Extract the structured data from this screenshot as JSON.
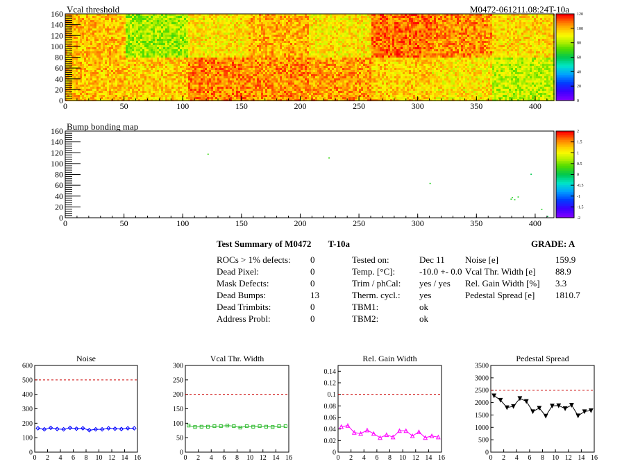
{
  "header": {
    "module_id": "M0472-061211.08:24T-10a"
  },
  "summary": {
    "title": "Test Summary of M0472",
    "test_label": "T-10a",
    "grade_label": "GRADE:",
    "grade_value": "A",
    "defects": [
      {
        "label": "ROCs > 1% defects:",
        "value": "0"
      },
      {
        "label": "Dead Pixel:",
        "value": "0"
      },
      {
        "label": "Mask Defects:",
        "value": "0"
      },
      {
        "label": "Dead Bumps:",
        "value": "13"
      },
      {
        "label": "Dead Trimbits:",
        "value": "0"
      },
      {
        "label": "Address Probl:",
        "value": "0"
      }
    ],
    "conditions": [
      {
        "label": "Tested on:",
        "value": "Dec 11"
      },
      {
        "label": "Temp. [°C]:",
        "value": "-10.0 +- 0.0"
      },
      {
        "label": "Trim / phCal:",
        "value": "yes / yes"
      },
      {
        "label": "Therm. cycl.:",
        "value": "yes"
      },
      {
        "label": "TBM1:",
        "value": "ok"
      },
      {
        "label": "TBM2:",
        "value": "ok"
      }
    ],
    "metrics": [
      {
        "label": "Noise [e]",
        "value": "159.9"
      },
      {
        "label": "Vcal Thr. Width [e]",
        "value": "88.9"
      },
      {
        "label": "Rel. Gain Width [%]",
        "value": "3.3"
      },
      {
        "label": "Pedestal Spread [e]",
        "value": "1810.7"
      }
    ]
  },
  "chart_data": [
    {
      "type": "heatmap",
      "title": "Vcal threshold",
      "xlim": [
        0,
        416
      ],
      "ylim": [
        0,
        160
      ],
      "xticks": [
        0,
        50,
        100,
        150,
        200,
        250,
        300,
        350,
        400
      ],
      "yticks": [
        0,
        20,
        40,
        60,
        80,
        100,
        120,
        140,
        160
      ],
      "zlim": [
        0,
        120
      ],
      "zticks": [
        0,
        20,
        40,
        60,
        80,
        100,
        120
      ],
      "roc_means_top": [
        100,
        80,
        94,
        102,
        94,
        110,
        106,
        96
      ],
      "roc_means_bottom": [
        100,
        98,
        107,
        106,
        104,
        98,
        94,
        84
      ]
    },
    {
      "type": "heatmap",
      "title": "Bump bonding map",
      "xlim": [
        0,
        416
      ],
      "ylim": [
        0,
        160
      ],
      "xticks": [
        0,
        50,
        100,
        150,
        200,
        250,
        300,
        350,
        400
      ],
      "yticks": [
        0,
        20,
        40,
        60,
        80,
        100,
        120,
        140,
        160
      ],
      "zlim": [
        -2,
        2
      ],
      "zticks": [
        2,
        1.5,
        1,
        0.5,
        0,
        -0.5,
        -1,
        -1.5,
        -2
      ],
      "points": [
        {
          "x": 121,
          "y": 117,
          "z": 0.3
        },
        {
          "x": 224,
          "y": 110,
          "z": 0.3
        },
        {
          "x": 310,
          "y": 63,
          "z": 0.2
        },
        {
          "x": 396,
          "y": 80,
          "z": 0.0
        },
        {
          "x": 379,
          "y": 34,
          "z": 0.2
        },
        {
          "x": 380,
          "y": 37,
          "z": 0.2
        },
        {
          "x": 382,
          "y": 33,
          "z": 0.2
        },
        {
          "x": 385,
          "y": 38,
          "z": 0.2
        },
        {
          "x": 405,
          "y": 15,
          "z": 0.2
        },
        {
          "x": 410,
          "y": 2,
          "z": 0.0
        }
      ]
    },
    {
      "type": "line",
      "title": "Noise",
      "xlim": [
        0,
        16
      ],
      "ylim": [
        0,
        600
      ],
      "xticks": [
        0,
        2,
        4,
        6,
        8,
        10,
        12,
        14,
        16
      ],
      "yticks": [
        0,
        100,
        200,
        300,
        400,
        500,
        600
      ],
      "cut": 500,
      "color": "#0000ff",
      "marker": "diamond",
      "x": [
        0,
        1,
        2,
        3,
        4,
        5,
        6,
        7,
        8,
        9,
        10,
        11,
        12,
        13,
        14,
        15
      ],
      "values": [
        165,
        158,
        168,
        160,
        158,
        168,
        162,
        165,
        152,
        158,
        158,
        165,
        162,
        160,
        165,
        165
      ]
    },
    {
      "type": "line",
      "title": "Vcal Thr. Width",
      "xlim": [
        0,
        16
      ],
      "ylim": [
        0,
        300
      ],
      "xticks": [
        0,
        2,
        4,
        6,
        8,
        10,
        12,
        14,
        16
      ],
      "yticks": [
        0,
        50,
        100,
        150,
        200,
        250,
        300
      ],
      "cut": 200,
      "color": "#33bb33",
      "marker": "square",
      "x": [
        0,
        1,
        2,
        3,
        4,
        5,
        6,
        7,
        8,
        9,
        10,
        11,
        12,
        13,
        14,
        15
      ],
      "values": [
        92,
        87,
        88,
        88,
        90,
        90,
        92,
        90,
        85,
        90,
        88,
        90,
        88,
        87,
        90,
        90
      ]
    },
    {
      "type": "line",
      "title": "Rel. Gain Width",
      "xlim": [
        0,
        16
      ],
      "ylim": [
        0,
        0.15
      ],
      "xticks": [
        0,
        2,
        4,
        6,
        8,
        10,
        12,
        14,
        16
      ],
      "yticks": [
        0,
        0.02,
        0.04,
        0.06,
        0.08,
        0.1,
        0.12,
        0.14
      ],
      "cut": 0.1,
      "color": "#ff00ff",
      "marker": "triangle",
      "x": [
        0,
        1,
        2,
        3,
        4,
        5,
        6,
        7,
        8,
        9,
        10,
        11,
        12,
        13,
        14,
        15
      ],
      "values": [
        0.044,
        0.046,
        0.034,
        0.032,
        0.038,
        0.032,
        0.025,
        0.03,
        0.026,
        0.037,
        0.037,
        0.028,
        0.035,
        0.025,
        0.028,
        0.026
      ]
    },
    {
      "type": "line",
      "title": "Pedestal Spread",
      "xlim": [
        0,
        16
      ],
      "ylim": [
        0,
        3500
      ],
      "xticks": [
        0,
        2,
        4,
        6,
        8,
        10,
        12,
        14,
        16
      ],
      "yticks": [
        0,
        500,
        1000,
        1500,
        2000,
        2500,
        3000,
        3500
      ],
      "cut": 2500,
      "color": "#000000",
      "marker": "triangle-down",
      "x": [
        0,
        1,
        2,
        3,
        4,
        5,
        6,
        7,
        8,
        9,
        10,
        11,
        12,
        13,
        14,
        15
      ],
      "values": [
        2280,
        2100,
        1800,
        1850,
        2170,
        2050,
        1640,
        1780,
        1460,
        1870,
        1880,
        1760,
        1900,
        1470,
        1640,
        1680
      ]
    }
  ]
}
